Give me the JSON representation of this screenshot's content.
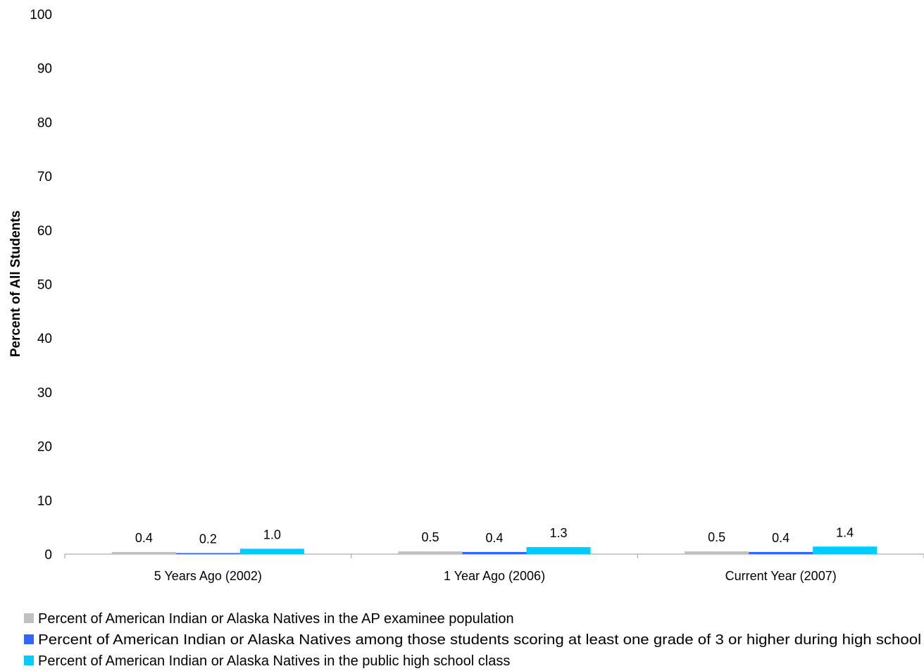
{
  "chart_data": {
    "type": "bar",
    "title": "",
    "xlabel": "",
    "ylabel": "Percent of All Students",
    "ylim": [
      0,
      100
    ],
    "yticks": [
      0,
      10,
      20,
      30,
      40,
      50,
      60,
      70,
      80,
      90,
      100
    ],
    "grid": false,
    "legend_position": "bottom",
    "categories": [
      "5 Years Ago (2002)",
      "1 Year Ago (2006)",
      "Current Year (2007)"
    ],
    "series": [
      {
        "name": "Percent of American Indian or Alaska Natives in the AP examinee population",
        "color": "#c0c0c0",
        "values": [
          0.4,
          0.5,
          0.5
        ],
        "labels": [
          "0.4",
          "0.5",
          "0.5"
        ]
      },
      {
        "name": "Percent of American Indian or Alaska Natives among those students scoring at least one grade of 3 or higher during high school",
        "color": "#3366ff",
        "values": [
          0.2,
          0.4,
          0.4
        ],
        "labels": [
          "0.2",
          "0.4",
          "0.4"
        ]
      },
      {
        "name": "Percent of American Indian or Alaska Natives in the public high school class",
        "color": "#00ccff",
        "values": [
          1.0,
          1.3,
          1.4
        ],
        "labels": [
          "1.0",
          "1.3",
          "1.4"
        ]
      }
    ]
  }
}
